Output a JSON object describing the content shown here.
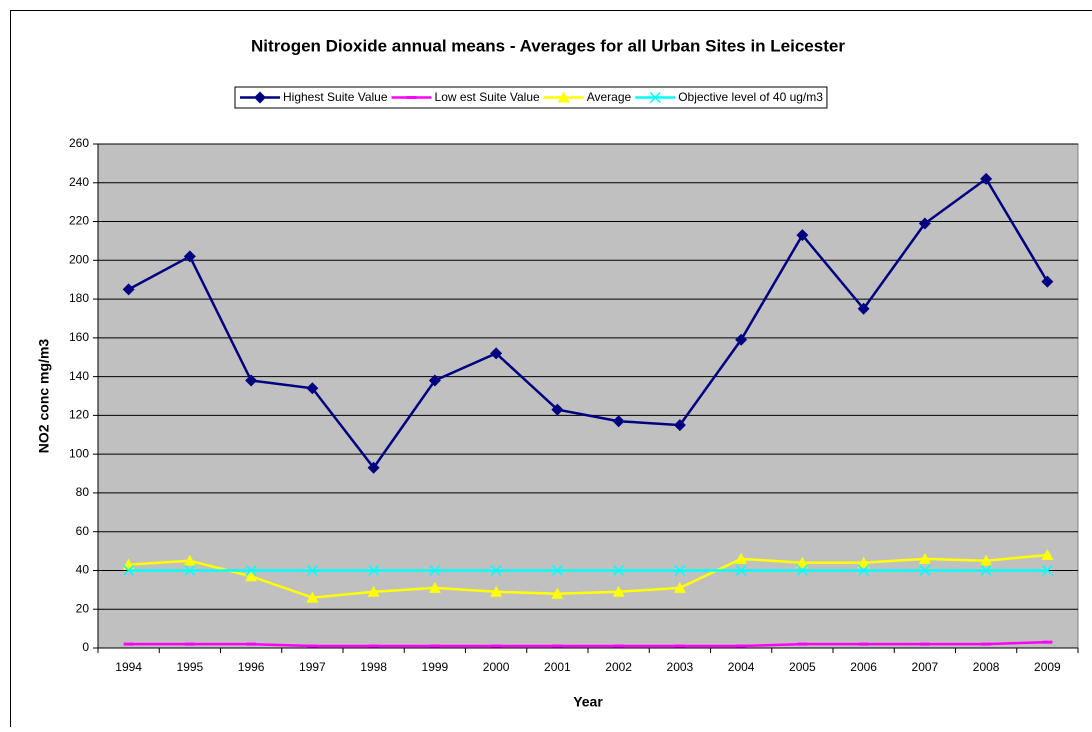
{
  "chart_data": {
    "type": "line",
    "title": "Nitrogen Dioxide annual means - Averages for all Urban Sites in Leicester",
    "x_label": "Year",
    "y_label": "NO2 conc mg/m3",
    "categories": [
      "1994",
      "1995",
      "1996",
      "1997",
      "1998",
      "1999",
      "2000",
      "2001",
      "2002",
      "2003",
      "2004",
      "2005",
      "2006",
      "2007",
      "2008",
      "2009"
    ],
    "series": [
      {
        "name": "Highest Suite Value",
        "color": "#000080",
        "marker": "diamond",
        "values": [
          185,
          202,
          138,
          134,
          93,
          138,
          152,
          123,
          117,
          115,
          159,
          213,
          175,
          219,
          242,
          189
        ]
      },
      {
        "name": "Low est Suite Value",
        "color": "#ff00ff",
        "marker": "dash",
        "values": [
          2,
          2,
          2,
          1,
          1,
          1,
          1,
          1,
          1,
          1,
          1,
          2,
          2,
          2,
          2,
          3
        ]
      },
      {
        "name": "Average",
        "color": "#ffff00",
        "marker": "triangle",
        "values": [
          43,
          45,
          37,
          26,
          29,
          31,
          29,
          28,
          29,
          31,
          46,
          44,
          44,
          46,
          45,
          48
        ]
      },
      {
        "name": "Objective level of 40 ug/m3",
        "color": "#00ffff",
        "marker": "x",
        "values": [
          40,
          40,
          40,
          40,
          40,
          40,
          40,
          40,
          40,
          40,
          40,
          40,
          40,
          40,
          40,
          40
        ]
      }
    ],
    "ylim": [
      0,
      260
    ],
    "yticks": [
      0,
      20,
      40,
      60,
      80,
      100,
      120,
      140,
      160,
      180,
      200,
      220,
      240,
      260
    ],
    "grid": true,
    "plot_background": "#c0c0c0",
    "legend_position": "top"
  }
}
